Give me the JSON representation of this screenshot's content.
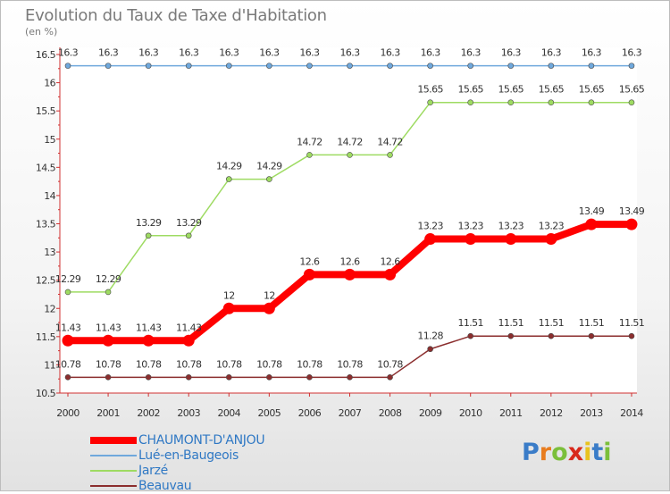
{
  "header": {
    "title": "Evolution du Taux de Taxe d'Habitation",
    "unit": "(en %)"
  },
  "logo": {
    "text": "Proxiti",
    "colors": [
      "#3a7cc8",
      "#e87c1e",
      "#7bbf3a",
      "#d8281b",
      "#e8c21e",
      "#3a7cc8",
      "#7bbf3a"
    ]
  },
  "chart_data": {
    "type": "line",
    "title": "Evolution du Taux de Taxe d'Habitation",
    "ylabel": "(en %)",
    "xlabel": "",
    "ylim": [
      10.5,
      16.5
    ],
    "grid": false,
    "legend_position": "bottom-left",
    "x": [
      "2000",
      "2001",
      "2002",
      "2003",
      "2004",
      "2005",
      "2006",
      "2007",
      "2008",
      "2009",
      "2010",
      "2011",
      "2012",
      "2013",
      "2014"
    ],
    "yticks": [
      10.5,
      11,
      11.5,
      12,
      12.5,
      13,
      13.5,
      14,
      14.5,
      15,
      15.5,
      16,
      16.5
    ],
    "yticklabels": [
      "10.5",
      "11",
      "11.5",
      "12",
      "12.5",
      "13",
      "13.5",
      "14",
      "14.5",
      "15",
      "15.5",
      "16",
      "16.5"
    ],
    "series": [
      {
        "name": "CHAUMONT-D'ANJOU",
        "color": "#ff0000",
        "values": [
          11.43,
          11.43,
          11.43,
          11.43,
          12,
          12,
          12.6,
          12.6,
          12.6,
          13.23,
          13.23,
          13.23,
          13.23,
          13.49,
          13.49
        ],
        "labels": [
          "11.43",
          "11.43",
          "11.43",
          "11.43",
          "12",
          "12",
          "12.6",
          "12.6",
          "12.6",
          "13.23",
          "13.23",
          "13.23",
          "13.23",
          "13.49",
          "13.49"
        ]
      },
      {
        "name": "Lué-en-Baugeois",
        "color": "#6fa8dc",
        "values": [
          16.3,
          16.3,
          16.3,
          16.3,
          16.3,
          16.3,
          16.3,
          16.3,
          16.3,
          16.3,
          16.3,
          16.3,
          16.3,
          16.3,
          16.3
        ],
        "labels": [
          "16.3",
          "16.3",
          "16.3",
          "16.3",
          "16.3",
          "16.3",
          "16.3",
          "16.3",
          "16.3",
          "16.3",
          "16.3",
          "16.3",
          "16.3",
          "16.3",
          "16.3"
        ]
      },
      {
        "name": "Jarzé",
        "color": "#9edb62",
        "values": [
          12.29,
          12.29,
          13.29,
          13.29,
          14.29,
          14.29,
          14.72,
          14.72,
          14.72,
          15.65,
          15.65,
          15.65,
          15.65,
          15.65,
          15.65
        ],
        "labels": [
          "12.29",
          "12.29",
          "13.29",
          "13.29",
          "14.29",
          "14.29",
          "14.72",
          "14.72",
          "14.72",
          "15.65",
          "15.65",
          "15.65",
          "15.65",
          "15.65",
          "15.65"
        ]
      },
      {
        "name": "Beauvau",
        "color": "#8b2e2e",
        "values": [
          10.78,
          10.78,
          10.78,
          10.78,
          10.78,
          10.78,
          10.78,
          10.78,
          10.78,
          11.28,
          11.51,
          11.51,
          11.51,
          11.51,
          11.51
        ],
        "labels": [
          "10.78",
          "10.78",
          "10.78",
          "10.78",
          "10.78",
          "10.78",
          "10.78",
          "10.78",
          "10.78",
          "11.28",
          "11.51",
          "11.51",
          "11.51",
          "11.51",
          "11.51"
        ]
      }
    ]
  }
}
